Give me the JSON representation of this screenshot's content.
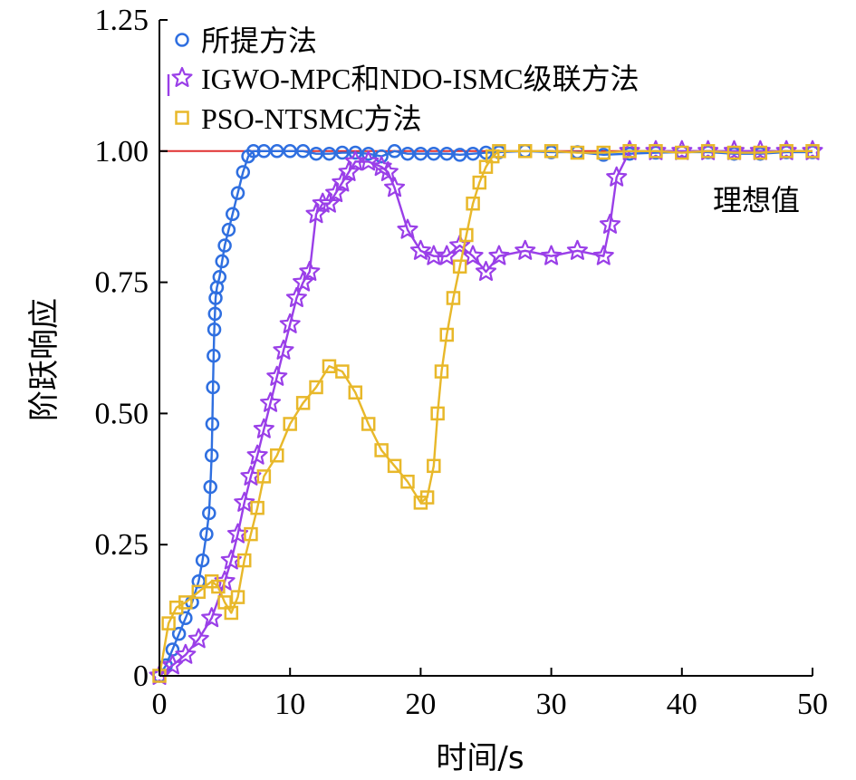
{
  "chart_data": {
    "type": "line",
    "xlabel": "时间/s",
    "ylabel": "阶跃响应",
    "xlim": [
      0,
      50
    ],
    "ylim": [
      0,
      1.25
    ],
    "x_ticks": [
      0,
      10,
      20,
      30,
      40,
      50
    ],
    "x_tick_labels": [
      "0",
      "10",
      "20",
      "30",
      "40",
      "50"
    ],
    "y_ticks": [
      0,
      0.25,
      0.5,
      0.75,
      1.0,
      1.25
    ],
    "y_tick_labels": [
      "0",
      "0.25",
      "0.50",
      "0.75",
      "1.00",
      "1.25"
    ],
    "grid": false,
    "legend_position": "top-left",
    "reference_line": {
      "label": "理想值",
      "y": 1.0,
      "color": "#e03030"
    },
    "series": [
      {
        "name": "所提方法",
        "color": "#2f6fe0",
        "marker": "circle",
        "x": [
          0,
          0.5,
          1,
          1.5,
          2,
          2.5,
          3,
          3.3,
          3.6,
          3.8,
          3.9,
          4.0,
          4.05,
          4.1,
          4.15,
          4.2,
          4.25,
          4.3,
          4.4,
          4.6,
          4.8,
          5.0,
          5.3,
          5.6,
          6.0,
          6.4,
          6.8,
          7.2,
          8,
          9,
          10,
          11,
          12,
          13,
          14,
          15,
          16,
          17,
          18,
          19,
          20,
          21,
          22,
          23,
          24,
          25,
          26,
          28,
          30,
          32,
          34,
          36,
          38,
          40,
          42,
          44,
          46,
          48,
          50
        ],
        "y": [
          0,
          0.02,
          0.05,
          0.08,
          0.11,
          0.14,
          0.18,
          0.22,
          0.27,
          0.31,
          0.36,
          0.42,
          0.48,
          0.55,
          0.61,
          0.66,
          0.69,
          0.72,
          0.74,
          0.76,
          0.79,
          0.82,
          0.85,
          0.88,
          0.92,
          0.96,
          0.99,
          1.0,
          1.0,
          1.0,
          1.0,
          1.0,
          0.995,
          0.995,
          0.997,
          0.997,
          0.995,
          0.99,
          1.0,
          0.995,
          0.995,
          0.995,
          0.995,
          0.993,
          0.995,
          0.997,
          0.998,
          1.0,
          0.998,
          0.998,
          0.993,
          0.995,
          0.997,
          0.998,
          0.998,
          0.995,
          0.995,
          0.998,
          0.998
        ]
      },
      {
        "name": "IGWO-MPC和NDO-ISMC级联方法",
        "color": "#9a3fe8",
        "marker": "star",
        "x": [
          0,
          1,
          2,
          3,
          4,
          5,
          5.5,
          6,
          6.5,
          7,
          7.5,
          8,
          8.5,
          9,
          9.5,
          10,
          10.5,
          11,
          11.5,
          12,
          12.5,
          13,
          13.5,
          14,
          14.5,
          15,
          16,
          17,
          17.5,
          18,
          19,
          20,
          21,
          22,
          23,
          24,
          25,
          26,
          28,
          30,
          32,
          34,
          34.5,
          35,
          36,
          38,
          40,
          42,
          44,
          46,
          48,
          50
        ],
        "y": [
          0,
          0.02,
          0.04,
          0.07,
          0.11,
          0.18,
          0.22,
          0.27,
          0.33,
          0.38,
          0.42,
          0.47,
          0.52,
          0.57,
          0.62,
          0.67,
          0.72,
          0.75,
          0.77,
          0.88,
          0.9,
          0.9,
          0.92,
          0.94,
          0.96,
          0.98,
          0.98,
          0.97,
          0.96,
          0.93,
          0.85,
          0.81,
          0.8,
          0.8,
          0.82,
          0.8,
          0.77,
          0.8,
          0.81,
          0.8,
          0.81,
          0.8,
          0.86,
          0.95,
          1.0,
          1.0,
          1.0,
          1.0,
          1.0,
          1.0,
          1.0,
          1.0
        ]
      },
      {
        "name": "PSO-NTSMC方法",
        "color": "#e8b82a",
        "marker": "square",
        "x": [
          0,
          0.7,
          1.3,
          2,
          3,
          4,
          4.5,
          5,
          5.5,
          6,
          6.5,
          7,
          7.5,
          8,
          9,
          10,
          11,
          12,
          13,
          14,
          15,
          16,
          17,
          18,
          19,
          20,
          20.5,
          21,
          21.3,
          21.6,
          22,
          22.5,
          23,
          23.5,
          24,
          24.5,
          25,
          25.5,
          26,
          28,
          30,
          32,
          34,
          36,
          38,
          40,
          42,
          44,
          46,
          48,
          50
        ],
        "y": [
          0,
          0.1,
          0.13,
          0.14,
          0.16,
          0.18,
          0.17,
          0.14,
          0.12,
          0.15,
          0.22,
          0.27,
          0.32,
          0.38,
          0.42,
          0.48,
          0.52,
          0.55,
          0.59,
          0.58,
          0.54,
          0.48,
          0.43,
          0.4,
          0.37,
          0.33,
          0.34,
          0.4,
          0.5,
          0.58,
          0.65,
          0.72,
          0.78,
          0.84,
          0.9,
          0.94,
          0.97,
          0.99,
          1.0,
          1.0,
          1.0,
          0.997,
          0.997,
          1.0,
          1.0,
          0.997,
          1.0,
          0.997,
          0.997,
          1.0,
          1.0
        ]
      }
    ]
  }
}
